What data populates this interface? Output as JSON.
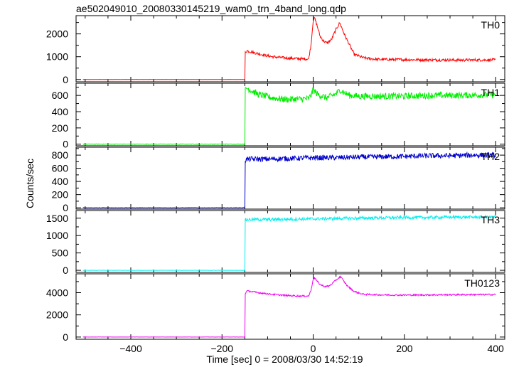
{
  "title": "ae502049010_20080330145219_wam0_trn_4band_long.qdp",
  "xlabel": "Time [sec] 0 = 2008/03/30 14:52:19",
  "ylabel": "Counts/sec",
  "colors": {
    "TH0": "#ff0000",
    "TH1": "#00ee00",
    "TH2": "#0000cc",
    "TH3": "#00eeee",
    "TH0123": "#ee00ee"
  },
  "chart_data": {
    "type": "line",
    "x_range": [
      -520,
      420
    ],
    "x_ticks": [
      -400,
      -200,
      0,
      200,
      400
    ],
    "x_tick_labels": [
      "−400",
      "−200",
      "0",
      "200",
      "400"
    ],
    "panels": [
      {
        "label": "TH0",
        "yticks": [
          0,
          1000,
          2000
        ],
        "ylim": [
          -100,
          2800
        ],
        "series": {
          "x": [
            -505,
            -150,
            -149,
            -145,
            -130,
            -110,
            -90,
            -70,
            -50,
            -30,
            -10,
            -5,
            0,
            3,
            8,
            15,
            22,
            30,
            40,
            50,
            58,
            62,
            70,
            80,
            90,
            110,
            140,
            200,
            260,
            320,
            400
          ],
          "y": [
            0,
            0,
            1200,
            1260,
            1180,
            1080,
            1000,
            960,
            930,
            910,
            900,
            1500,
            2600,
            2700,
            2400,
            1900,
            1700,
            1600,
            1750,
            2200,
            2480,
            2300,
            1900,
            1500,
            1100,
            950,
            880,
            870,
            860,
            850,
            860
          ],
          "noise": 60
        }
      },
      {
        "label": "TH1",
        "yticks": [
          0,
          200,
          400,
          600
        ],
        "ylim": [
          -20,
          750
        ],
        "series": {
          "x": [
            -505,
            -150,
            -149,
            -145,
            -120,
            -90,
            -60,
            -30,
            -10,
            -5,
            0,
            10,
            30,
            50,
            60,
            65,
            80,
            100,
            150,
            200,
            260,
            320,
            400
          ],
          "y": [
            0,
            0,
            660,
            690,
            610,
            570,
            550,
            555,
            560,
            600,
            670,
            610,
            570,
            620,
            670,
            640,
            600,
            590,
            590,
            590,
            600,
            600,
            610
          ],
          "noise": 40
        }
      },
      {
        "label": "TH2",
        "yticks": [
          0,
          200,
          400,
          600,
          800
        ],
        "ylim": [
          -20,
          920
        ],
        "series": {
          "x": [
            -505,
            -150,
            -149,
            -145,
            -100,
            -50,
            0,
            50,
            100,
            150,
            200,
            250,
            300,
            350,
            400
          ],
          "y": [
            0,
            0,
            720,
            740,
            740,
            750,
            760,
            760,
            770,
            775,
            780,
            790,
            790,
            800,
            800
          ],
          "noise": 40
        }
      },
      {
        "label": "TH3",
        "yticks": [
          0,
          500,
          1000,
          1500
        ],
        "ylim": [
          -60,
          1720
        ],
        "series": {
          "x": [
            -505,
            -150,
            -149,
            -145,
            -100,
            -50,
            0,
            50,
            100,
            150,
            200,
            250,
            300,
            350,
            400
          ],
          "y": [
            0,
            0,
            1440,
            1460,
            1460,
            1470,
            1480,
            1490,
            1500,
            1510,
            1520,
            1520,
            1530,
            1530,
            1530
          ],
          "noise": 45
        }
      },
      {
        "label": "TH0123",
        "yticks": [
          0,
          2000,
          4000
        ],
        "ylim": [
          -200,
          5700
        ],
        "series": {
          "x": [
            -505,
            -150,
            -149,
            -145,
            -120,
            -90,
            -60,
            -30,
            -10,
            -5,
            0,
            3,
            8,
            15,
            25,
            35,
            45,
            55,
            60,
            65,
            75,
            90,
            110,
            150,
            200,
            260,
            320,
            400
          ],
          "y": [
            0,
            0,
            3950,
            4150,
            4000,
            3850,
            3750,
            3700,
            3700,
            4200,
            5250,
            5350,
            5050,
            4750,
            4550,
            4600,
            4950,
            5300,
            5450,
            5150,
            4600,
            4100,
            3850,
            3800,
            3780,
            3800,
            3820,
            3830
          ],
          "noise": 70
        }
      }
    ]
  }
}
